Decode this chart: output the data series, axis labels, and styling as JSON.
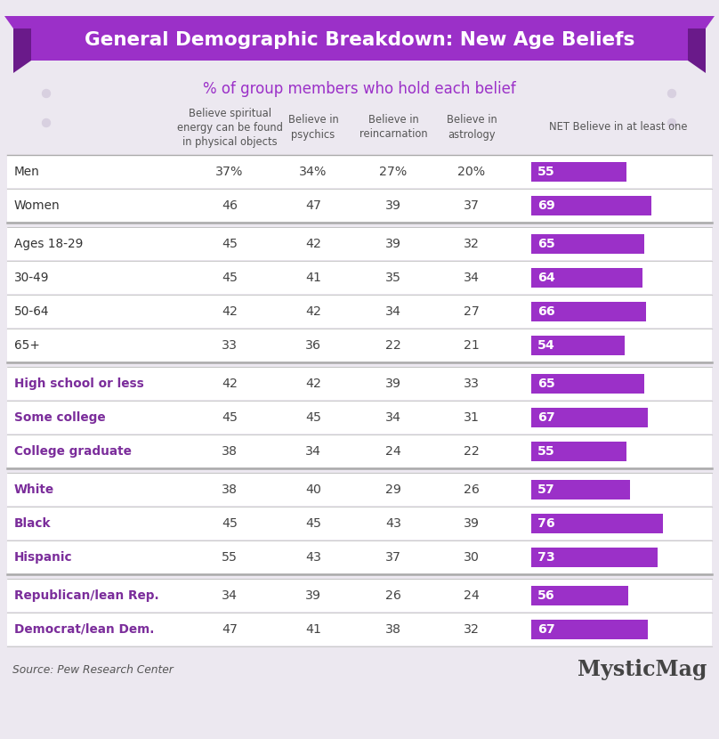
{
  "title": "General Demographic Breakdown: New Age Beliefs",
  "subtitle": "% of group members who hold each belief",
  "col_headers": [
    "Believe spiritual\nenergy can be found\nin physical objects",
    "Believe in\npsychics",
    "Believe in\nreincarnation",
    "Believe in\nastrology",
    "NET Believe in at least one"
  ],
  "rows": [
    {
      "label": "Men",
      "bold": false,
      "values": [
        "37%",
        "34%",
        "27%",
        "20%"
      ],
      "net": 55,
      "group_sep_before": false
    },
    {
      "label": "Women",
      "bold": false,
      "values": [
        "46",
        "47",
        "39",
        "37"
      ],
      "net": 69,
      "group_sep_before": false
    },
    {
      "label": "Ages 18-29",
      "bold": false,
      "values": [
        "45",
        "42",
        "39",
        "32"
      ],
      "net": 65,
      "group_sep_before": true
    },
    {
      "label": "30-49",
      "bold": false,
      "values": [
        "45",
        "41",
        "35",
        "34"
      ],
      "net": 64,
      "group_sep_before": false
    },
    {
      "label": "50-64",
      "bold": false,
      "values": [
        "42",
        "42",
        "34",
        "27"
      ],
      "net": 66,
      "group_sep_before": false
    },
    {
      "label": "65+",
      "bold": false,
      "values": [
        "33",
        "36",
        "22",
        "21"
      ],
      "net": 54,
      "group_sep_before": false
    },
    {
      "label": "High school or less",
      "bold": true,
      "values": [
        "42",
        "42",
        "39",
        "33"
      ],
      "net": 65,
      "group_sep_before": true
    },
    {
      "label": "Some college",
      "bold": true,
      "values": [
        "45",
        "45",
        "34",
        "31"
      ],
      "net": 67,
      "group_sep_before": false
    },
    {
      "label": "College graduate",
      "bold": true,
      "values": [
        "38",
        "34",
        "24",
        "22"
      ],
      "net": 55,
      "group_sep_before": false
    },
    {
      "label": "White",
      "bold": true,
      "values": [
        "38",
        "40",
        "29",
        "26"
      ],
      "net": 57,
      "group_sep_before": true
    },
    {
      "label": "Black",
      "bold": true,
      "values": [
        "45",
        "45",
        "43",
        "39"
      ],
      "net": 76,
      "group_sep_before": false
    },
    {
      "label": "Hispanic",
      "bold": true,
      "values": [
        "55",
        "43",
        "37",
        "30"
      ],
      "net": 73,
      "group_sep_before": false
    },
    {
      "label": "Republican/lean Rep.",
      "bold": true,
      "values": [
        "34",
        "39",
        "26",
        "24"
      ],
      "net": 56,
      "group_sep_before": true
    },
    {
      "label": "Democrat/lean Dem.",
      "bold": true,
      "values": [
        "47",
        "41",
        "38",
        "32"
      ],
      "net": 67,
      "group_sep_before": false
    }
  ],
  "source": "Source: Pew Research Center",
  "brand": "MysticMag",
  "bg_color": "#ece8f0",
  "header_bg": "#9b30c8",
  "dark_ribbon": "#6a1a8a",
  "bar_color": "#9b30c8",
  "title_color": "#ffffff",
  "subtitle_color": "#9b30c8",
  "label_color_bold": "#7b2d9b",
  "label_color_normal": "#333333",
  "value_color": "#444444",
  "sep_color": "#cccccc",
  "dot_color": "#d8d0e0",
  "source_color": "#555555",
  "brand_color": "#444444"
}
